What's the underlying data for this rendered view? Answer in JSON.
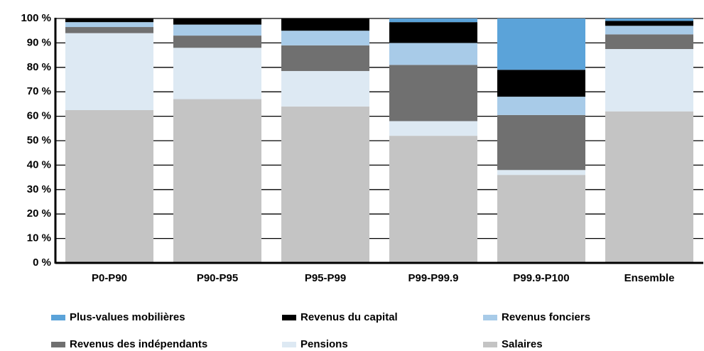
{
  "chart_data": {
    "type": "stacked_bar",
    "categories": [
      "P0-P90",
      "P90-P95",
      "P95-P99",
      "P99-P99.9",
      "P99.9-P100",
      "Ensemble"
    ],
    "series": [
      {
        "name": "Plus-values mobilières",
        "color": "#5ba3d9",
        "values": [
          0,
          0,
          0,
          1.5,
          21,
          1
        ]
      },
      {
        "name": "Revenus du capital",
        "color": "#000000",
        "values": [
          1.5,
          2.5,
          5,
          8.5,
          11,
          2
        ]
      },
      {
        "name": "Revenus fonciers",
        "color": "#a8cbe8",
        "values": [
          2,
          4.5,
          6,
          9,
          7.5,
          3.5
        ]
      },
      {
        "name": "Revenus des indépendants",
        "color": "#707070",
        "values": [
          2.5,
          5,
          10.5,
          23,
          22.5,
          6
        ]
      },
      {
        "name": "Pensions",
        "color": "#dde9f3",
        "values": [
          31.5,
          21,
          14.5,
          6,
          2,
          25.5
        ]
      },
      {
        "name": "Salaires",
        "color": "#c4c4c4",
        "values": [
          62.5,
          67,
          64,
          52,
          36,
          62
        ]
      }
    ],
    "ylim": [
      0,
      100
    ],
    "yticks": [
      {
        "value": 0,
        "label": "0 %"
      },
      {
        "value": 10,
        "label": "10 %"
      },
      {
        "value": 20,
        "label": "20 %"
      },
      {
        "value": 30,
        "label": "30 %"
      },
      {
        "value": 40,
        "label": "40 %"
      },
      {
        "value": 50,
        "label": "50 %"
      },
      {
        "value": 60,
        "label": "60 %"
      },
      {
        "value": 70,
        "label": "70 %"
      },
      {
        "value": 80,
        "label": "80 %"
      },
      {
        "value": 90,
        "label": "90 %"
      },
      {
        "value": 100,
        "label": "100 %"
      }
    ],
    "grid": true
  }
}
